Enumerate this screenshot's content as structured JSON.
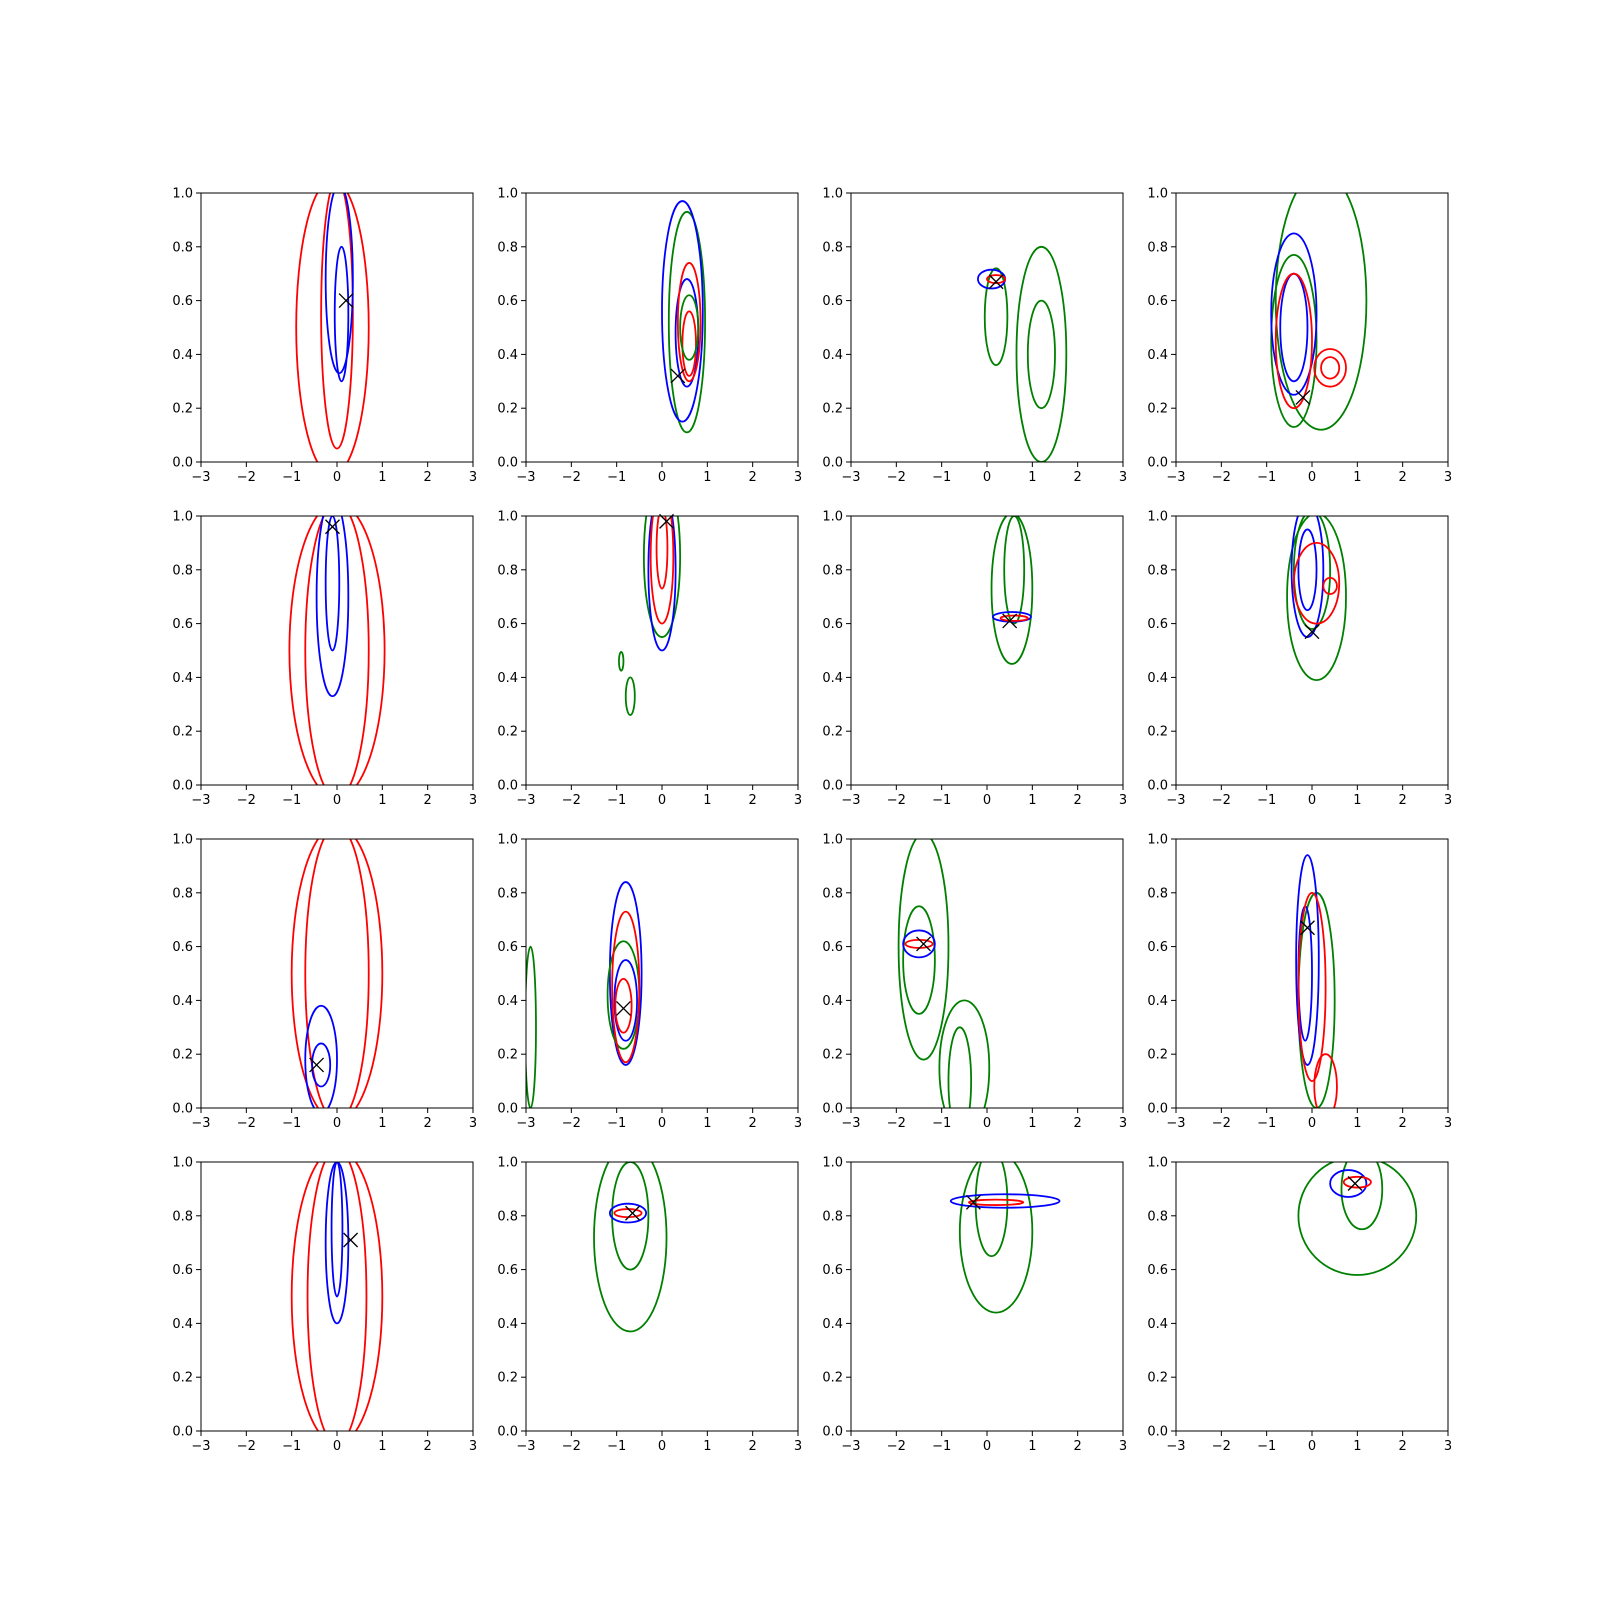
{
  "colors": {
    "blue": "#0000ff",
    "red": "#ff0000",
    "green": "#008000",
    "marker": "#000000",
    "axes": "#000000"
  },
  "chart_data": {
    "type": "contour",
    "layout": "4x4 grid of contour subplots",
    "xlim": [
      -3,
      3
    ],
    "ylim": [
      0,
      1
    ],
    "xticks": [
      -3,
      -2,
      -1,
      0,
      1,
      2,
      3
    ],
    "yticks": [
      0.0,
      0.2,
      0.4,
      0.6,
      0.8,
      1.0
    ],
    "xtick_labels": [
      "−3",
      "−2",
      "−1",
      "0",
      "1",
      "2",
      "3"
    ],
    "ytick_labels": [
      "0.0",
      "0.2",
      "0.4",
      "0.6",
      "0.8",
      "1.0"
    ],
    "legend": "none",
    "grid": false,
    "subplots": [
      {
        "row": 0,
        "col": 0,
        "marker": [
          0.2,
          0.6
        ],
        "contours": [
          {
            "color": "red",
            "cx": -0.1,
            "cy": 0.5,
            "rx": 0.8,
            "ry": 0.55
          },
          {
            "color": "red",
            "cx": 0.0,
            "cy": 0.55,
            "rx": 0.35,
            "ry": 0.5
          },
          {
            "color": "blue",
            "cx": 0.05,
            "cy": 0.68,
            "rx": 0.3,
            "ry": 0.35
          },
          {
            "color": "blue",
            "cx": 0.1,
            "cy": 0.55,
            "rx": 0.15,
            "ry": 0.25
          }
        ]
      },
      {
        "row": 0,
        "col": 1,
        "marker": [
          0.35,
          0.32
        ],
        "contours": [
          {
            "color": "green",
            "cx": 0.55,
            "cy": 0.52,
            "rx": 0.4,
            "ry": 0.41
          },
          {
            "color": "blue",
            "cx": 0.45,
            "cy": 0.56,
            "rx": 0.45,
            "ry": 0.41
          },
          {
            "color": "blue",
            "cx": 0.55,
            "cy": 0.48,
            "rx": 0.25,
            "ry": 0.2
          },
          {
            "color": "red",
            "cx": 0.6,
            "cy": 0.52,
            "rx": 0.25,
            "ry": 0.22
          },
          {
            "color": "red",
            "cx": 0.6,
            "cy": 0.44,
            "rx": 0.15,
            "ry": 0.12
          },
          {
            "color": "green",
            "cx": 0.6,
            "cy": 0.5,
            "rx": 0.2,
            "ry": 0.12
          }
        ]
      },
      {
        "row": 0,
        "col": 2,
        "marker": [
          0.2,
          0.67
        ],
        "contours": [
          {
            "color": "green",
            "cx": 1.2,
            "cy": 0.4,
            "rx": 0.55,
            "ry": 0.4
          },
          {
            "color": "green",
            "cx": 1.2,
            "cy": 0.4,
            "rx": 0.3,
            "ry": 0.2
          },
          {
            "color": "green",
            "cx": 0.2,
            "cy": 0.54,
            "rx": 0.25,
            "ry": 0.18
          },
          {
            "color": "blue",
            "cx": 0.1,
            "cy": 0.68,
            "rx": 0.3,
            "ry": 0.035
          },
          {
            "color": "red",
            "cx": 0.2,
            "cy": 0.68,
            "rx": 0.2,
            "ry": 0.015
          }
        ]
      },
      {
        "row": 0,
        "col": 3,
        "marker": [
          -0.2,
          0.24
        ],
        "contours": [
          {
            "color": "green",
            "cx": 0.2,
            "cy": 0.6,
            "rx": 1.0,
            "ry": 0.48
          },
          {
            "color": "green",
            "cx": -0.4,
            "cy": 0.45,
            "rx": 0.5,
            "ry": 0.32
          },
          {
            "color": "blue",
            "cx": -0.4,
            "cy": 0.55,
            "rx": 0.5,
            "ry": 0.3
          },
          {
            "color": "blue",
            "cx": -0.4,
            "cy": 0.5,
            "rx": 0.3,
            "ry": 0.2
          },
          {
            "color": "red",
            "cx": -0.4,
            "cy": 0.45,
            "rx": 0.4,
            "ry": 0.25
          },
          {
            "color": "red",
            "cx": 0.4,
            "cy": 0.35,
            "rx": 0.35,
            "ry": 0.07
          },
          {
            "color": "red",
            "cx": 0.4,
            "cy": 0.35,
            "rx": 0.2,
            "ry": 0.04
          }
        ]
      },
      {
        "row": 1,
        "col": 0,
        "marker": [
          -0.1,
          0.96
        ],
        "contours": [
          {
            "color": "red",
            "cx": 0.0,
            "cy": 0.5,
            "rx": 1.05,
            "ry": 0.55
          },
          {
            "color": "red",
            "cx": 0.0,
            "cy": 0.5,
            "rx": 0.7,
            "ry": 0.55
          },
          {
            "color": "blue",
            "cx": -0.1,
            "cy": 0.7,
            "rx": 0.35,
            "ry": 0.37
          },
          {
            "color": "blue",
            "cx": -0.1,
            "cy": 0.75,
            "rx": 0.15,
            "ry": 0.25
          }
        ]
      },
      {
        "row": 1,
        "col": 1,
        "marker": [
          0.1,
          0.98
        ],
        "contours": [
          {
            "color": "green",
            "cx": 0.0,
            "cy": 0.85,
            "rx": 0.4,
            "ry": 0.3
          },
          {
            "color": "blue",
            "cx": 0.0,
            "cy": 0.8,
            "rx": 0.3,
            "ry": 0.3
          },
          {
            "color": "red",
            "cx": 0.0,
            "cy": 0.85,
            "rx": 0.25,
            "ry": 0.25
          },
          {
            "color": "red",
            "cx": 0.0,
            "cy": 0.88,
            "rx": 0.12,
            "ry": 0.15
          },
          {
            "color": "green",
            "cx": -0.9,
            "cy": 0.46,
            "rx": 0.05,
            "ry": 0.035
          },
          {
            "color": "green",
            "cx": -0.7,
            "cy": 0.33,
            "rx": 0.1,
            "ry": 0.07
          }
        ]
      },
      {
        "row": 1,
        "col": 2,
        "marker": [
          0.5,
          0.61
        ],
        "contours": [
          {
            "color": "green",
            "cx": 0.55,
            "cy": 0.73,
            "rx": 0.45,
            "ry": 0.28
          },
          {
            "color": "green",
            "cx": 0.6,
            "cy": 0.8,
            "rx": 0.22,
            "ry": 0.2
          },
          {
            "color": "blue",
            "cx": 0.55,
            "cy": 0.625,
            "rx": 0.42,
            "ry": 0.018
          },
          {
            "color": "red",
            "cx": 0.6,
            "cy": 0.62,
            "rx": 0.3,
            "ry": 0.01
          }
        ]
      },
      {
        "row": 1,
        "col": 3,
        "marker": [
          0.0,
          0.57
        ],
        "contours": [
          {
            "color": "green",
            "cx": 0.1,
            "cy": 0.7,
            "rx": 0.65,
            "ry": 0.31
          },
          {
            "color": "green",
            "cx": 0.0,
            "cy": 0.8,
            "rx": 0.4,
            "ry": 0.22
          },
          {
            "color": "blue",
            "cx": -0.1,
            "cy": 0.8,
            "rx": 0.35,
            "ry": 0.25
          },
          {
            "color": "blue",
            "cx": -0.1,
            "cy": 0.8,
            "rx": 0.2,
            "ry": 0.15
          },
          {
            "color": "red",
            "cx": 0.1,
            "cy": 0.75,
            "rx": 0.5,
            "ry": 0.15
          },
          {
            "color": "red",
            "cx": 0.4,
            "cy": 0.74,
            "rx": 0.15,
            "ry": 0.03
          }
        ]
      },
      {
        "row": 2,
        "col": 0,
        "marker": [
          -0.45,
          0.16
        ],
        "contours": [
          {
            "color": "red",
            "cx": 0.0,
            "cy": 0.5,
            "rx": 1.0,
            "ry": 0.55
          },
          {
            "color": "red",
            "cx": 0.0,
            "cy": 0.5,
            "rx": 0.7,
            "ry": 0.55
          },
          {
            "color": "blue",
            "cx": -0.35,
            "cy": 0.18,
            "rx": 0.35,
            "ry": 0.2
          },
          {
            "color": "blue",
            "cx": -0.35,
            "cy": 0.16,
            "rx": 0.2,
            "ry": 0.08
          }
        ]
      },
      {
        "row": 2,
        "col": 1,
        "marker": [
          -0.85,
          0.37
        ],
        "contours": [
          {
            "color": "green",
            "cx": -2.9,
            "cy": 0.3,
            "rx": 0.12,
            "ry": 0.3
          },
          {
            "color": "blue",
            "cx": -0.8,
            "cy": 0.5,
            "rx": 0.35,
            "ry": 0.34
          },
          {
            "color": "blue",
            "cx": -0.8,
            "cy": 0.4,
            "rx": 0.25,
            "ry": 0.15
          },
          {
            "color": "green",
            "cx": -0.85,
            "cy": 0.42,
            "rx": 0.35,
            "ry": 0.2
          },
          {
            "color": "red",
            "cx": -0.8,
            "cy": 0.45,
            "rx": 0.3,
            "ry": 0.28
          },
          {
            "color": "red",
            "cx": -0.85,
            "cy": 0.38,
            "rx": 0.18,
            "ry": 0.1
          }
        ]
      },
      {
        "row": 2,
        "col": 2,
        "marker": [
          -1.4,
          0.61
        ],
        "contours": [
          {
            "color": "green",
            "cx": -1.4,
            "cy": 0.6,
            "rx": 0.55,
            "ry": 0.42
          },
          {
            "color": "green",
            "cx": -1.5,
            "cy": 0.55,
            "rx": 0.35,
            "ry": 0.2
          },
          {
            "color": "green",
            "cx": -0.5,
            "cy": 0.15,
            "rx": 0.55,
            "ry": 0.25
          },
          {
            "color": "green",
            "cx": -0.6,
            "cy": 0.1,
            "rx": 0.25,
            "ry": 0.2
          },
          {
            "color": "blue",
            "cx": -1.5,
            "cy": 0.61,
            "rx": 0.35,
            "ry": 0.05
          },
          {
            "color": "red",
            "cx": -1.5,
            "cy": 0.61,
            "rx": 0.3,
            "ry": 0.015
          }
        ]
      },
      {
        "row": 2,
        "col": 3,
        "marker": [
          -0.1,
          0.67
        ],
        "contours": [
          {
            "color": "green",
            "cx": 0.1,
            "cy": 0.4,
            "rx": 0.4,
            "ry": 0.4
          },
          {
            "color": "blue",
            "cx": -0.1,
            "cy": 0.55,
            "rx": 0.25,
            "ry": 0.39
          },
          {
            "color": "blue",
            "cx": -0.15,
            "cy": 0.5,
            "rx": 0.15,
            "ry": 0.25
          },
          {
            "color": "red",
            "cx": 0.0,
            "cy": 0.45,
            "rx": 0.3,
            "ry": 0.35
          },
          {
            "color": "red",
            "cx": 0.3,
            "cy": 0.08,
            "rx": 0.25,
            "ry": 0.12
          }
        ]
      },
      {
        "row": 3,
        "col": 0,
        "marker": [
          0.3,
          0.71
        ],
        "contours": [
          {
            "color": "red",
            "cx": 0.0,
            "cy": 0.5,
            "rx": 1.0,
            "ry": 0.55
          },
          {
            "color": "red",
            "cx": 0.0,
            "cy": 0.5,
            "rx": 0.65,
            "ry": 0.55
          },
          {
            "color": "blue",
            "cx": 0.0,
            "cy": 0.7,
            "rx": 0.25,
            "ry": 0.3
          },
          {
            "color": "blue",
            "cx": 0.0,
            "cy": 0.75,
            "rx": 0.12,
            "ry": 0.25
          }
        ]
      },
      {
        "row": 3,
        "col": 1,
        "marker": [
          -0.65,
          0.81
        ],
        "contours": [
          {
            "color": "green",
            "cx": -0.7,
            "cy": 0.72,
            "rx": 0.8,
            "ry": 0.35
          },
          {
            "color": "green",
            "cx": -0.7,
            "cy": 0.8,
            "rx": 0.4,
            "ry": 0.2
          },
          {
            "color": "blue",
            "cx": -0.75,
            "cy": 0.81,
            "rx": 0.4,
            "ry": 0.035
          },
          {
            "color": "red",
            "cx": -0.75,
            "cy": 0.81,
            "rx": 0.3,
            "ry": 0.015
          }
        ]
      },
      {
        "row": 3,
        "col": 2,
        "marker": [
          -0.3,
          0.85
        ],
        "contours": [
          {
            "color": "green",
            "cx": 0.2,
            "cy": 0.74,
            "rx": 0.8,
            "ry": 0.3
          },
          {
            "color": "green",
            "cx": 0.1,
            "cy": 0.85,
            "rx": 0.35,
            "ry": 0.2
          },
          {
            "color": "blue",
            "cx": 0.4,
            "cy": 0.855,
            "rx": 1.2,
            "ry": 0.025
          },
          {
            "color": "red",
            "cx": 0.2,
            "cy": 0.85,
            "rx": 0.6,
            "ry": 0.01
          }
        ]
      },
      {
        "row": 3,
        "col": 3,
        "marker": [
          0.95,
          0.92
        ],
        "contours": [
          {
            "color": "green",
            "cx": 1.0,
            "cy": 0.8,
            "rx": 1.3,
            "ry": 0.22
          },
          {
            "color": "green",
            "cx": 1.1,
            "cy": 0.9,
            "rx": 0.45,
            "ry": 0.15
          },
          {
            "color": "blue",
            "cx": 0.8,
            "cy": 0.92,
            "rx": 0.4,
            "ry": 0.05
          },
          {
            "color": "red",
            "cx": 1.0,
            "cy": 0.925,
            "rx": 0.3,
            "ry": 0.02
          }
        ]
      }
    ]
  }
}
